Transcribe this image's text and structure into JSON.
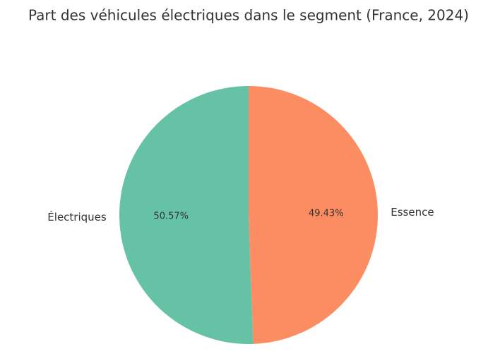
{
  "chart_data": {
    "type": "pie",
    "title": "Part des véhicules électriques dans le segment (France, 2024)",
    "categories": [
      "Électriques",
      "Essence"
    ],
    "values": [
      50.57,
      49.43
    ],
    "value_labels": [
      "50.57%",
      "49.43%"
    ],
    "colors": [
      "#66c2a5",
      "#fc8d62"
    ]
  }
}
